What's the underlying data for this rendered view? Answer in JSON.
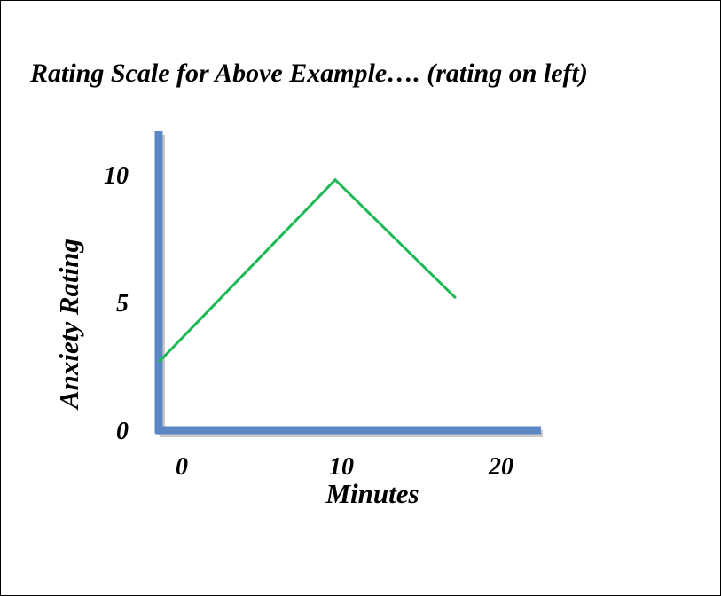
{
  "title": "Rating Scale for Above Example…. (rating on left)",
  "chart_data": {
    "type": "line",
    "xlabel": "Minutes",
    "ylabel": "Anxiety Rating",
    "x_ticks": [
      0,
      10,
      20
    ],
    "y_ticks": [
      0,
      5,
      10
    ],
    "xlim": [
      0,
      20
    ],
    "ylim": [
      0,
      10
    ],
    "grid": false,
    "series": [
      {
        "x": [
          0,
          11,
          18.5
        ],
        "y": [
          2.7,
          9.8,
          5.2
        ],
        "color": "#1db954"
      }
    ],
    "axis_color": "#5b87c4"
  }
}
